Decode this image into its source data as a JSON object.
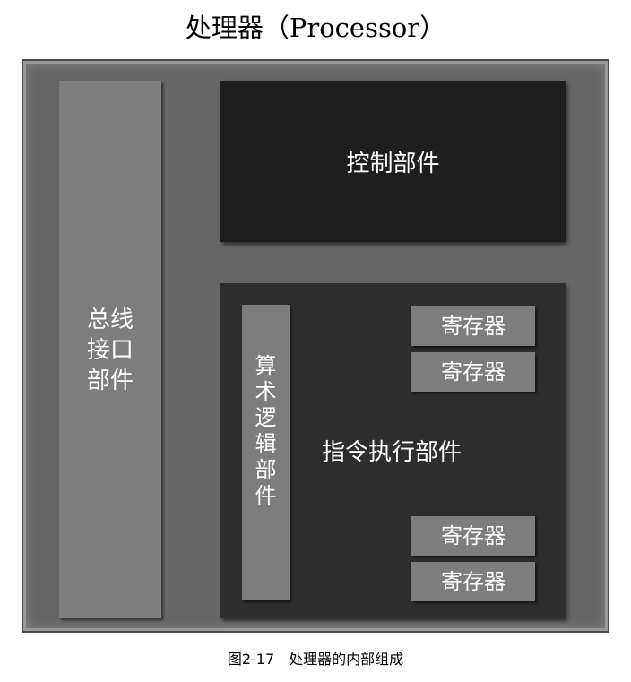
{
  "title": "处理器（Processor）",
  "bus_interface": {
    "label_lines": [
      "总线",
      "接口",
      "部件"
    ]
  },
  "control_unit": {
    "label": "控制部件"
  },
  "execution_unit": {
    "label": "指令执行部件",
    "alu": {
      "label_chars": [
        "算",
        "术",
        "逻",
        "辑",
        "部",
        "件"
      ]
    },
    "registers": [
      "寄存器",
      "寄存器",
      "寄存器",
      "寄存器"
    ]
  },
  "caption": "图2-17　处理器的内部组成"
}
